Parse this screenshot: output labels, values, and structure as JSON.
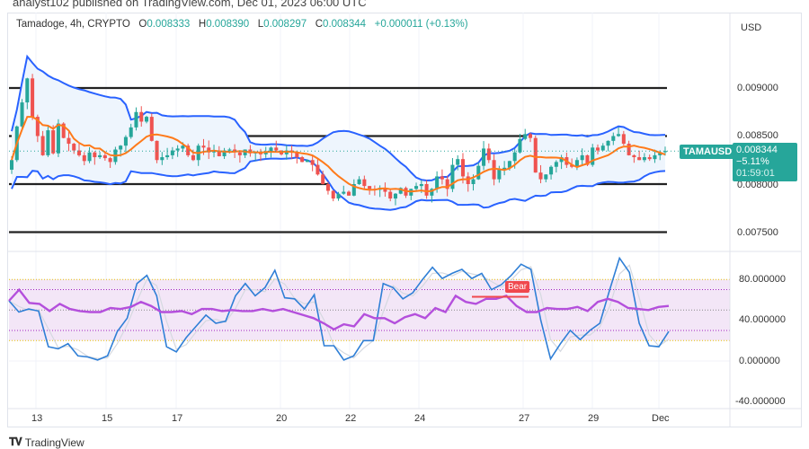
{
  "header": {
    "published": "analyst102 published on TradingView.com, Dec 01, 2023 06:00 UTC",
    "symbol_info": "Tamadoge, 4h, CRYPTO",
    "open_label": "O",
    "open": "0.008333",
    "high_label": "H",
    "high": "0.008390",
    "low_label": "L",
    "low": "0.008297",
    "close_label": "C",
    "close": "0.008344",
    "change": "+0.000011 (+0.13%)"
  },
  "currency": "USD",
  "price_tag": {
    "symbol": "TAMAUSD",
    "price": "0.008344",
    "change_pct": "−5.11%",
    "countdown": "01:59:01"
  },
  "footer": {
    "logo_text": "TradingView"
  },
  "colors": {
    "up": "#26a69a",
    "down": "#ef5350",
    "bollinger": "#2962ff",
    "ma": "#ff7a1a",
    "stoch_k": "#2f7fd6",
    "rsi": "#b44fdc",
    "band_fill": "#eef5fd",
    "osc_band": "#f3e6f7",
    "bear": "#f0484e"
  },
  "chart_data": [
    {
      "type": "candlestick",
      "title": "Tamadoge, 4h, CRYPTO",
      "x_ticks": [
        "13",
        "15",
        "17",
        "20",
        "22",
        "24",
        "27",
        "29",
        "Dec"
      ],
      "y_ticks": [
        "0.009000",
        "0.008500",
        "0.008000",
        "0.007500"
      ],
      "ylim": [
        0.00733,
        0.00945
      ],
      "horizontal_levels": [
        0.009,
        0.0085,
        0.008,
        0.0075
      ],
      "overlays": [
        "Bollinger Bands",
        "Moving average"
      ],
      "closes": [
        0.00825,
        0.0086,
        0.00885,
        0.0091,
        0.0087,
        0.0085,
        0.0083,
        0.00856,
        0.00832,
        0.00863,
        0.00848,
        0.00842,
        0.00835,
        0.0083,
        0.00824,
        0.00833,
        0.00828,
        0.0083,
        0.00827,
        0.00823,
        0.00836,
        0.0084,
        0.00849,
        0.00859,
        0.00875,
        0.00865,
        0.0087,
        0.00845,
        0.00825,
        0.00828,
        0.0083,
        0.00835,
        0.00837,
        0.0084,
        0.0083,
        0.00825,
        0.0084,
        0.00838,
        0.00833,
        0.00835,
        0.00829,
        0.00835,
        0.00836,
        0.00833,
        0.0083,
        0.00836,
        0.00832,
        0.00833,
        0.00831,
        0.00834,
        0.00838,
        0.00835,
        0.00831,
        0.00835,
        0.00833,
        0.00828,
        0.00823,
        0.00825,
        0.0082,
        0.0081,
        0.008,
        0.00793,
        0.00785,
        0.0079,
        0.00792,
        0.00788,
        0.008,
        0.00805,
        0.00798,
        0.00795,
        0.00794,
        0.00796,
        0.00792,
        0.00785,
        0.0079,
        0.00796,
        0.00788,
        0.00795,
        0.00798,
        0.008,
        0.00788,
        0.00795,
        0.00808,
        0.00805,
        0.00795,
        0.0082,
        0.00826,
        0.00808,
        0.008,
        0.00805,
        0.00819,
        0.00837,
        0.00825,
        0.00805,
        0.00815,
        0.00817,
        0.00824,
        0.00833,
        0.00847,
        0.00852,
        0.00848,
        0.00812,
        0.00805,
        0.0081,
        0.00818,
        0.00823,
        0.00828,
        0.0082,
        0.00818,
        0.00825,
        0.0083,
        0.0082,
        0.00838,
        0.00835,
        0.0084,
        0.00845,
        0.0085,
        0.00852,
        0.00842,
        0.0083,
        0.00828,
        0.00825,
        0.00828,
        0.00826,
        0.0083,
        0.008333,
        0.008344
      ],
      "last_candle": {
        "open": 0.008333,
        "high": 0.00839,
        "low": 0.008297,
        "close": 0.008344
      }
    },
    {
      "type": "line",
      "y_ticks": [
        "80.000000",
        "40.000000",
        "0.000000",
        "-40.000000"
      ],
      "ylim": [
        -44,
        108
      ],
      "levels": {
        "band_upper": 80,
        "band_lower": 20,
        "upper_dotted": 70,
        "middle_dotted": 50,
        "lower_dotted": 30
      },
      "series": [
        {
          "values": [
            59,
            48,
            51,
            49,
            14,
            12,
            17,
            5,
            4,
            1,
            5,
            29,
            42,
            76,
            84,
            64,
            14,
            9,
            23,
            34,
            45,
            37,
            39,
            64,
            76,
            64,
            72,
            89,
            62,
            61,
            51,
            65,
            15,
            15,
            1,
            5,
            20,
            20,
            76,
            72,
            61,
            67,
            80,
            92,
            81,
            86,
            90,
            81,
            86,
            70,
            75,
            84,
            95,
            90,
            40,
            2,
            17,
            30,
            21,
            30,
            37,
            70,
            101,
            87,
            37,
            15,
            14,
            29
          ]
        },
        {
          "values": [
            59,
            70,
            57,
            56,
            49,
            56,
            51,
            49,
            48,
            48,
            52,
            51,
            53,
            58,
            54,
            48,
            48,
            49,
            46,
            51,
            51,
            49,
            50,
            49,
            49,
            51,
            49,
            51,
            48,
            45,
            42,
            37,
            31,
            36,
            34,
            46,
            42,
            42,
            37,
            43,
            46,
            42,
            52,
            48,
            64,
            58,
            56,
            61,
            61,
            64,
            54,
            48,
            48,
            52,
            51,
            51,
            53,
            49,
            58,
            61,
            58,
            52,
            51,
            50,
            53,
            54
          ]
        }
      ],
      "annotations": [
        {
          "text": "Bear",
          "value": 63
        }
      ]
    }
  ]
}
